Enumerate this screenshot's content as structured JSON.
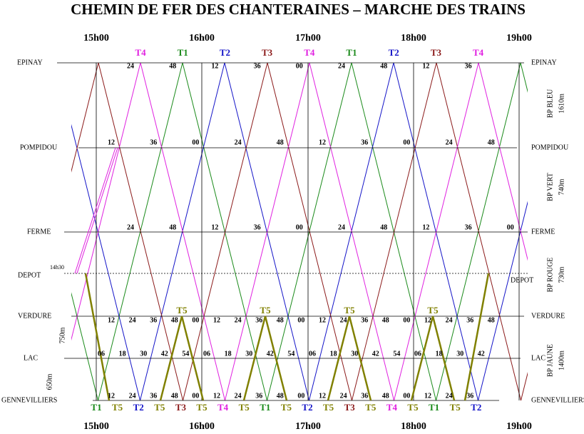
{
  "title": "CHEMIN DE FER DES CHANTERAINES – MARCHE DES TRAINS",
  "hours": [
    "15h00",
    "16h00",
    "17h00",
    "18h00",
    "19h00"
  ],
  "stations": [
    "EPINAY",
    "POMPIDOU",
    "FERME",
    "DEPOT",
    "VERDURE",
    "LAC",
    "GENNEVILLIERS"
  ],
  "minutes": {
    "EPINAY": [
      "24",
      "48",
      "12",
      "36",
      "00",
      "24",
      "48",
      "12",
      "36"
    ],
    "POMPIDOU": [
      "12",
      "36",
      "00",
      "24",
      "48",
      "12",
      "36",
      "00",
      "24",
      "48"
    ],
    "FERME": [
      "24",
      "48",
      "12",
      "36",
      "00",
      "24",
      "48",
      "12",
      "36",
      "00"
    ],
    "VERDURE": [
      "12",
      "24",
      "36",
      "48",
      "00",
      "12",
      "24",
      "36",
      "48",
      "00",
      "12",
      "24",
      "36",
      "48",
      "00",
      "12",
      "24",
      "36",
      "48"
    ],
    "LAC": [
      "06",
      "18",
      "30",
      "42",
      "54",
      "06",
      "18",
      "30",
      "42",
      "54",
      "06",
      "18",
      "30",
      "42",
      "54",
      "06",
      "18",
      "30",
      "42"
    ],
    "GENNEVILLIERS": [
      "12",
      "24",
      "36",
      "48",
      "00",
      "12",
      "24",
      "36",
      "48",
      "00",
      "12",
      "24",
      "36",
      "48",
      "00",
      "12",
      "24",
      "36"
    ]
  },
  "top_trains": [
    "T4",
    "T1",
    "T2",
    "T3",
    "T4",
    "T1",
    "T2",
    "T3",
    "T4"
  ],
  "verdure_trains": [
    "T5",
    "T5",
    "T5",
    "T5"
  ],
  "bottom_trains": [
    "T1",
    "T5",
    "T2",
    "T5",
    "T3",
    "T5",
    "T4",
    "T5",
    "T1",
    "T5",
    "T2",
    "T5",
    "T3",
    "T5",
    "T4",
    "T5",
    "T1",
    "T5",
    "T2"
  ],
  "sections": [
    {
      "name": "BP BLEU",
      "length": "1610m"
    },
    {
      "name": "BP VERT",
      "length": "740m"
    },
    {
      "name": "BP ROUGE",
      "length": "730m"
    },
    {
      "name": "BP JAUNE",
      "length": "1400m"
    }
  ],
  "left_lengths": [
    "750m",
    "650m"
  ],
  "depot_time": "14h30",
  "colors": {
    "T1": "#1a8a1a",
    "T2": "#1414c8",
    "T3": "#8b1a1a",
    "T4": "#e020e0",
    "T5": "#808000"
  }
}
